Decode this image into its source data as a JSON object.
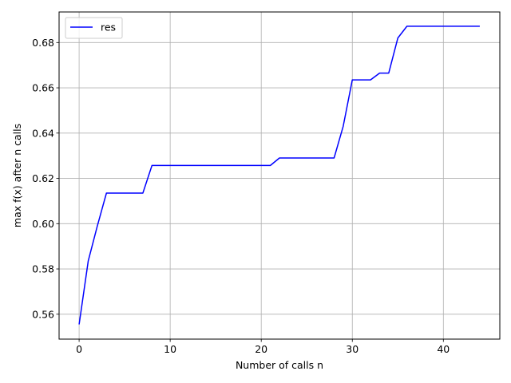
{
  "chart_data": {
    "type": "line",
    "title": "",
    "xlabel": "Number of calls n",
    "ylabel": "max f(x) after n calls",
    "xlim": [
      -2.2,
      46.2
    ],
    "ylim": [
      0.549,
      0.6935
    ],
    "xticks": [
      0,
      10,
      20,
      30,
      40
    ],
    "xtick_labels": [
      "0",
      "10",
      "20",
      "30",
      "40"
    ],
    "yticks": [
      0.56,
      0.58,
      0.6,
      0.62,
      0.64,
      0.66,
      0.68
    ],
    "ytick_labels": [
      "0.56",
      "0.58",
      "0.60",
      "0.62",
      "0.64",
      "0.66",
      "0.68"
    ],
    "grid": true,
    "legend_position": "top-left",
    "series": [
      {
        "name": "res",
        "color": "#0000ff",
        "x": [
          0,
          1,
          2,
          3,
          4,
          5,
          6,
          7,
          8,
          9,
          10,
          11,
          12,
          13,
          14,
          15,
          16,
          17,
          18,
          19,
          20,
          21,
          22,
          23,
          24,
          25,
          26,
          27,
          28,
          29,
          30,
          31,
          32,
          33,
          34,
          35,
          36,
          37,
          38,
          39,
          40,
          41,
          42,
          43,
          44
        ],
        "y": [
          0.5555,
          0.5835,
          0.599,
          0.6135,
          0.6135,
          0.6135,
          0.6135,
          0.6135,
          0.6257,
          0.6257,
          0.6257,
          0.6257,
          0.6257,
          0.6257,
          0.6257,
          0.6257,
          0.6257,
          0.6257,
          0.6257,
          0.6257,
          0.6257,
          0.6257,
          0.629,
          0.629,
          0.629,
          0.629,
          0.629,
          0.629,
          0.629,
          0.643,
          0.6635,
          0.6635,
          0.6635,
          0.6665,
          0.6665,
          0.682,
          0.6872,
          0.6872,
          0.6872,
          0.6872,
          0.6872,
          0.6872,
          0.6872,
          0.6872,
          0.6872
        ]
      }
    ]
  }
}
